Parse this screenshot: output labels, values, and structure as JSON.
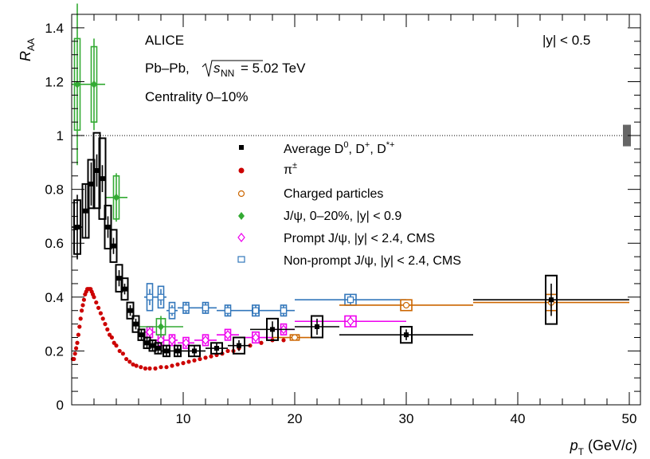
{
  "chart_data": {
    "type": "scatter",
    "xlabel_main": "p",
    "xlabel_sub": "T",
    "xlabel_unit_pre": " (GeV/",
    "xlabel_unit_c": "c",
    "xlabel_unit_post": ")",
    "ylabel_main": "R",
    "ylabel_sub": "AA",
    "xlim": [
      0,
      50
    ],
    "ylim": [
      0,
      1.45
    ],
    "x_ticks": [
      10,
      20,
      30,
      40,
      50
    ],
    "y_ticks": [
      0,
      0.2,
      0.4,
      0.6,
      0.8,
      1,
      1.2,
      1.4
    ],
    "x_tick_labels": [
      "10",
      "20",
      "30",
      "40",
      "50"
    ],
    "y_tick_labels": [
      "0",
      "0.2",
      "0.4",
      "0.6",
      "0.8",
      "1",
      "1.2",
      "1.4"
    ],
    "reference_line": 1,
    "grid": false,
    "legend_position": "center",
    "annotations": {
      "experiment": "ALICE",
      "system_pre": "Pb–Pb, ",
      "system_sqrt": "s",
      "system_sub": "NN",
      "system_post": " = 5.02 TeV",
      "centrality": "Centrality 0–10%",
      "rapidity": "|y| < 0.5"
    },
    "colors": {
      "D": "#000000",
      "pion": "#cc0000",
      "charged": "#cc6600",
      "jpsi": "#33aa33",
      "prompt": "#ee00ee",
      "nonprompt": "#3377bb",
      "norm_box": "#666666"
    },
    "series": [
      {
        "name": "Average D",
        "name_sup1": "0",
        "name_mid1": ", D",
        "name_sup2": "+",
        "name_mid2": ", D",
        "name_sup3": "*+",
        "marker": "square-filled",
        "color": "#000000",
        "points": [
          {
            "x": 0.5,
            "y": 0.66,
            "xerr": 0.5,
            "yerr": 0.12,
            "syst": 0.1
          },
          {
            "x": 1.25,
            "y": 0.72,
            "xerr": 0.25,
            "yerr": 0.1,
            "syst": 0.1
          },
          {
            "x": 1.75,
            "y": 0.82,
            "xerr": 0.25,
            "yerr": 0.08,
            "syst": 0.09
          },
          {
            "x": 2.25,
            "y": 0.87,
            "xerr": 0.25,
            "yerr": 0.06,
            "syst": 0.14
          },
          {
            "x": 2.75,
            "y": 0.84,
            "xerr": 0.25,
            "yerr": 0.05,
            "syst": 0.15
          },
          {
            "x": 3.25,
            "y": 0.66,
            "xerr": 0.25,
            "yerr": 0.04,
            "syst": 0.08
          },
          {
            "x": 3.75,
            "y": 0.59,
            "xerr": 0.25,
            "yerr": 0.03,
            "syst": 0.06
          },
          {
            "x": 4.25,
            "y": 0.47,
            "xerr": 0.25,
            "yerr": 0.03,
            "syst": 0.05
          },
          {
            "x": 4.75,
            "y": 0.43,
            "xerr": 0.25,
            "yerr": 0.02,
            "syst": 0.04
          },
          {
            "x": 5.25,
            "y": 0.35,
            "xerr": 0.25,
            "yerr": 0.02,
            "syst": 0.03
          },
          {
            "x": 5.75,
            "y": 0.3,
            "xerr": 0.25,
            "yerr": 0.02,
            "syst": 0.03
          },
          {
            "x": 6.25,
            "y": 0.26,
            "xerr": 0.25,
            "yerr": 0.02,
            "syst": 0.02
          },
          {
            "x": 6.75,
            "y": 0.23,
            "xerr": 0.25,
            "yerr": 0.02,
            "syst": 0.02
          },
          {
            "x": 7.25,
            "y": 0.22,
            "xerr": 0.25,
            "yerr": 0.02,
            "syst": 0.02
          },
          {
            "x": 7.75,
            "y": 0.21,
            "xerr": 0.25,
            "yerr": 0.02,
            "syst": 0.02
          },
          {
            "x": 8.5,
            "y": 0.2,
            "xerr": 0.5,
            "yerr": 0.02,
            "syst": 0.02
          },
          {
            "x": 9.5,
            "y": 0.2,
            "xerr": 0.5,
            "yerr": 0.02,
            "syst": 0.02
          },
          {
            "x": 11,
            "y": 0.2,
            "xerr": 1,
            "yerr": 0.02,
            "syst": 0.02
          },
          {
            "x": 13,
            "y": 0.21,
            "xerr": 1,
            "yerr": 0.02,
            "syst": 0.02
          },
          {
            "x": 15,
            "y": 0.22,
            "xerr": 1,
            "yerr": 0.02,
            "syst": 0.03
          },
          {
            "x": 18,
            "y": 0.28,
            "xerr": 2,
            "yerr": 0.03,
            "syst": 0.04
          },
          {
            "x": 22,
            "y": 0.29,
            "xerr": 2,
            "yerr": 0.03,
            "syst": 0.04
          },
          {
            "x": 30,
            "y": 0.26,
            "xerr": 6,
            "yerr": 0.02,
            "syst": 0.03
          },
          {
            "x": 43,
            "y": 0.39,
            "xerr": 7,
            "yerr": 0.06,
            "syst": 0.09
          }
        ]
      },
      {
        "name": "π",
        "name_sup1": "±",
        "marker": "circle-filled",
        "color": "#cc0000",
        "curve": true,
        "points_dense": [
          [
            0.1,
            0.17
          ],
          [
            0.2,
            0.17
          ],
          [
            0.3,
            0.19
          ],
          [
            0.4,
            0.21
          ],
          [
            0.5,
            0.23
          ],
          [
            0.6,
            0.26
          ],
          [
            0.7,
            0.29
          ],
          [
            0.8,
            0.32
          ],
          [
            0.9,
            0.35
          ],
          [
            1.0,
            0.37
          ],
          [
            1.1,
            0.39
          ],
          [
            1.2,
            0.41
          ],
          [
            1.3,
            0.42
          ],
          [
            1.4,
            0.43
          ],
          [
            1.5,
            0.43
          ],
          [
            1.6,
            0.43
          ],
          [
            1.7,
            0.43
          ],
          [
            1.8,
            0.42
          ],
          [
            1.9,
            0.41
          ],
          [
            2.0,
            0.4
          ],
          [
            2.2,
            0.38
          ],
          [
            2.4,
            0.36
          ],
          [
            2.6,
            0.34
          ],
          [
            2.8,
            0.32
          ],
          [
            3.0,
            0.3
          ],
          [
            3.2,
            0.28
          ],
          [
            3.4,
            0.26
          ],
          [
            3.6,
            0.25
          ],
          [
            3.8,
            0.23
          ],
          [
            4.0,
            0.22
          ],
          [
            4.3,
            0.2
          ],
          [
            4.6,
            0.19
          ],
          [
            4.9,
            0.17
          ],
          [
            5.2,
            0.16
          ],
          [
            5.5,
            0.15
          ],
          [
            5.8,
            0.145
          ],
          [
            6.2,
            0.14
          ],
          [
            6.6,
            0.135
          ],
          [
            7.0,
            0.135
          ],
          [
            7.5,
            0.135
          ],
          [
            8.0,
            0.14
          ],
          [
            8.5,
            0.14
          ],
          [
            9.0,
            0.145
          ],
          [
            9.5,
            0.15
          ],
          [
            10.0,
            0.155
          ],
          [
            10.5,
            0.16
          ],
          [
            11.0,
            0.165
          ],
          [
            11.5,
            0.17
          ],
          [
            12.0,
            0.175
          ],
          [
            12.5,
            0.18
          ],
          [
            13.0,
            0.185
          ],
          [
            13.5,
            0.19
          ],
          [
            14.0,
            0.2
          ],
          [
            14.5,
            0.2
          ],
          [
            15.0,
            0.21
          ],
          [
            16.0,
            0.22
          ],
          [
            17.0,
            0.23
          ],
          [
            18.0,
            0.24
          ],
          [
            19.0,
            0.24
          ]
        ]
      },
      {
        "name": "Charged particles",
        "marker": "circle-open",
        "color": "#cc6600",
        "points": [
          {
            "x": 20,
            "y": 0.25,
            "xerr": 2,
            "yerr": 0.01,
            "syst": 0.01
          },
          {
            "x": 30,
            "y": 0.37,
            "xerr": 6,
            "yerr": 0.01,
            "syst": 0.02
          },
          {
            "x": 43,
            "y": 0.38,
            "xerr": 7,
            "yerr": 0.02,
            "syst": 0.03
          }
        ]
      },
      {
        "name": "J/ψ, 0–20%, |y| < 0.9",
        "marker": "diamond-filled",
        "color": "#33aa33",
        "points": [
          {
            "x": 0.5,
            "y": 1.19,
            "xerr": 0.5,
            "yerr": 0.3,
            "syst": 0.17
          },
          {
            "x": 2,
            "y": 1.19,
            "xerr": 1,
            "yerr": 0.17,
            "syst": 0.14
          },
          {
            "x": 4,
            "y": 0.77,
            "xerr": 1,
            "yerr": 0.09,
            "syst": 0.08
          },
          {
            "x": 8,
            "y": 0.29,
            "xerr": 2,
            "yerr": 0.04,
            "syst": 0.03
          }
        ]
      },
      {
        "name": "Prompt J/ψ, |y| < 2.4, CMS",
        "marker": "diamond-open",
        "color": "#ee00ee",
        "points": [
          {
            "x": 7,
            "y": 0.27,
            "xerr": 0.5,
            "yerr": 0.02,
            "syst": 0.02
          },
          {
            "x": 8,
            "y": 0.24,
            "xerr": 0.5,
            "yerr": 0.02,
            "syst": 0.02
          },
          {
            "x": 9,
            "y": 0.24,
            "xerr": 0.5,
            "yerr": 0.02,
            "syst": 0.02
          },
          {
            "x": 10.25,
            "y": 0.23,
            "xerr": 0.75,
            "yerr": 0.01,
            "syst": 0.02
          },
          {
            "x": 12,
            "y": 0.24,
            "xerr": 1,
            "yerr": 0.01,
            "syst": 0.02
          },
          {
            "x": 14,
            "y": 0.26,
            "xerr": 1,
            "yerr": 0.01,
            "syst": 0.02
          },
          {
            "x": 16.5,
            "y": 0.25,
            "xerr": 1.5,
            "yerr": 0.01,
            "syst": 0.02
          },
          {
            "x": 19,
            "y": 0.28,
            "xerr": 1,
            "yerr": 0.01,
            "syst": 0.02
          },
          {
            "x": 25,
            "y": 0.31,
            "xerr": 5,
            "yerr": 0.02,
            "syst": 0.02
          }
        ]
      },
      {
        "name": "Non-prompt J/ψ, |y| < 2.4, CMS",
        "marker": "square-open",
        "color": "#3377bb",
        "points": [
          {
            "x": 7,
            "y": 0.4,
            "xerr": 0.5,
            "yerr": 0.03,
            "syst": 0.05
          },
          {
            "x": 8,
            "y": 0.4,
            "xerr": 0.5,
            "yerr": 0.03,
            "syst": 0.04
          },
          {
            "x": 9,
            "y": 0.35,
            "xerr": 0.5,
            "yerr": 0.02,
            "syst": 0.03
          },
          {
            "x": 10.25,
            "y": 0.36,
            "xerr": 0.75,
            "yerr": 0.02,
            "syst": 0.02
          },
          {
            "x": 12,
            "y": 0.36,
            "xerr": 1,
            "yerr": 0.02,
            "syst": 0.02
          },
          {
            "x": 14,
            "y": 0.35,
            "xerr": 1,
            "yerr": 0.02,
            "syst": 0.02
          },
          {
            "x": 16.5,
            "y": 0.35,
            "xerr": 1.5,
            "yerr": 0.02,
            "syst": 0.02
          },
          {
            "x": 19,
            "y": 0.35,
            "xerr": 1,
            "yerr": 0.02,
            "syst": 0.02
          },
          {
            "x": 25,
            "y": 0.39,
            "xerr": 5,
            "yerr": 0.02,
            "syst": 0.02
          }
        ]
      }
    ]
  }
}
